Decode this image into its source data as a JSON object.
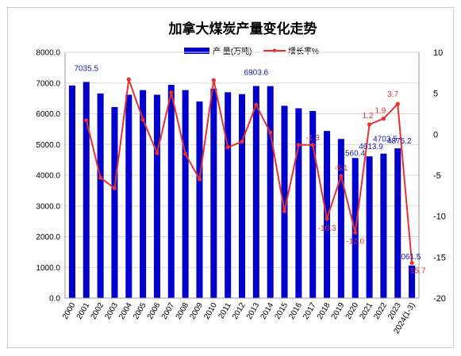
{
  "chart_data": {
    "type": "bar+line",
    "title": "加拿大煤炭产量变化走势",
    "categories": [
      "2000",
      "2001",
      "2002",
      "2003",
      "2004",
      "2005",
      "2006",
      "2007",
      "2008",
      "2009",
      "2010",
      "2011",
      "2012",
      "2013",
      "2014",
      "2015",
      "2016",
      "2017",
      "2018",
      "2019",
      "2020",
      "2021",
      "2022",
      "2023",
      "2024(1-3)"
    ],
    "series": [
      {
        "name": "产 量(万吨)",
        "type": "bar",
        "axis": "left",
        "color": "#0000cc",
        "values": [
          6920,
          7035.5,
          6660,
          6220,
          6620,
          6770,
          6620,
          6940,
          6770,
          6400,
          6820,
          6700,
          6640,
          6903.6,
          6900,
          6260,
          6180,
          6090,
          5440,
          5180,
          4560.4,
          4613.9,
          4703.5,
          4875.2,
          1061.5
        ]
      },
      {
        "name": "增长率%",
        "type": "line",
        "axis": "right",
        "color": "#e83030",
        "values": [
          null,
          1.7,
          -5.3,
          -6.6,
          6.7,
          1.8,
          -2.3,
          5.1,
          -2.4,
          -5.5,
          6.6,
          -1.6,
          -0.9,
          3.6,
          0.2,
          -9.4,
          -1.3,
          -1.3,
          -10.3,
          -5.1,
          -12.0,
          1.2,
          1.9,
          3.7,
          -15.7
        ]
      }
    ],
    "left_axis": {
      "min": 0,
      "max": 8000,
      "step": 1000,
      "tick_labels": [
        "0.0",
        "1000.0",
        "2000.0",
        "3000.0",
        "4000.0",
        "5000.0",
        "6000.0",
        "7000.0",
        "8000.0"
      ]
    },
    "right_axis": {
      "min": -20,
      "max": 10,
      "step": 5,
      "tick_labels": [
        "-20",
        "-15",
        "-10",
        "-5",
        "0",
        "5",
        "10"
      ]
    },
    "bar_labels": [
      {
        "index": 1,
        "text": "7035.5"
      },
      {
        "index": 13,
        "text": "6903.6"
      },
      {
        "index": 20,
        "text": "4560.4"
      },
      {
        "index": 21,
        "text": "4613.9"
      },
      {
        "index": 22,
        "text": "4703.5"
      },
      {
        "index": 23,
        "text": "4875.2"
      },
      {
        "index": 24,
        "text": "1061.5"
      }
    ],
    "line_labels": [
      {
        "index": 17,
        "text": "-1.3"
      },
      {
        "index": 18,
        "text": "-10.3"
      },
      {
        "index": 19,
        "text": "-5.1"
      },
      {
        "index": 20,
        "text": "-12.0"
      },
      {
        "index": 21,
        "text": "1.2"
      },
      {
        "index": 22,
        "text": "1.9"
      },
      {
        "index": 23,
        "text": "3.7"
      },
      {
        "index": 24,
        "text": "-15.7"
      }
    ],
    "legend_position": "top-center",
    "grid": true
  }
}
